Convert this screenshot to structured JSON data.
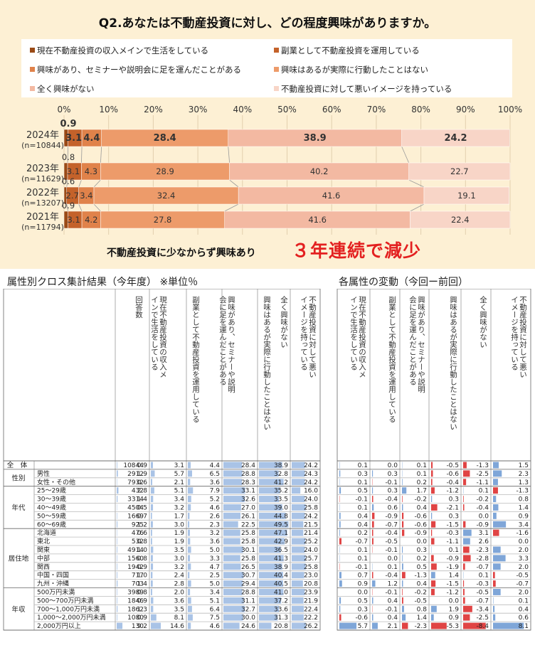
{
  "title": "Q2.あなたは不動産投資に対し、どの程度興味がありますか。",
  "legend": [
    {
      "label": "現在不動産投資の収入メインで生活をしている",
      "color": "#9a4a16"
    },
    {
      "label": "副業として不動産投資を運用している",
      "color": "#c4622a"
    },
    {
      "label": "興味があり、セミナーや説明会に足を運んだことがある",
      "color": "#e0824a"
    },
    {
      "label": "興味はあるが実際に行動したことはない",
      "color": "#ed9b6a"
    },
    {
      "label": "全く興味がない",
      "color": "#f3b9a2"
    },
    {
      "label": "不動産投資に対して悪いイメージを持っている",
      "color": "#f8d5c7"
    }
  ],
  "chart_data": {
    "type": "bar",
    "orientation": "horizontal-stacked-100",
    "xlim": [
      0,
      100
    ],
    "x_ticks": [
      "0%",
      "10%",
      "20%",
      "30%",
      "40%",
      "50%",
      "60%",
      "70%",
      "80%",
      "90%",
      "100%"
    ],
    "categories": [
      "2024年",
      "2023年",
      "2022年",
      "2021年"
    ],
    "category_sublabels": [
      "(n=10844)",
      "(n=11629)",
      "(n=13207)",
      "(n=11794)"
    ],
    "series": [
      {
        "name": "現在不動産投資の収入メインで生活をしている",
        "values": [
          0.9,
          0.8,
          0.6,
          0.9
        ]
      },
      {
        "name": "副業として不動産投資を運用している",
        "values": [
          3.1,
          3.1,
          2.7,
          3.1
        ]
      },
      {
        "name": "興味があり、セミナーや説明会に足を運んだことがある",
        "values": [
          4.4,
          4.3,
          3.4,
          4.2
        ]
      },
      {
        "name": "興味はあるが実際に行動したことはない",
        "values": [
          28.4,
          28.9,
          32.4,
          27.8
        ]
      },
      {
        "name": "全く興味がない",
        "values": [
          38.9,
          40.2,
          41.6,
          41.6
        ]
      },
      {
        "name": "不動産投資に対して悪いイメージを持っている",
        "values": [
          24.2,
          22.7,
          19.1,
          22.4
        ]
      }
    ],
    "grid": true,
    "legend_position": "top"
  },
  "caption_left": "不動産投資に少なからず興味あり",
  "caption_right": "３年連続で減少",
  "section_left": "属性別クロス集計結果（今年度） ※単位％",
  "section_right": "各属性の変動（今回ー前回）",
  "table_headers": [
    "回答数",
    "現在不動産投資の収入メインで生活をしている",
    "副業として不動産投資を運用している",
    "興味があり、セミナーや説明会に足を運んだことがある",
    "興味はあるが実際に行動したことはない",
    "全く興味がない",
    "不動産投資に対して悪いイメージを持っている"
  ],
  "table_rows": [
    {
      "group": "全　体",
      "label": "",
      "n": "10844",
      "v": [
        "0.9",
        "3.1",
        "4.4",
        "28.4",
        "38.9",
        "24.2"
      ],
      "d": [
        "0.1",
        "0.0",
        "0.1",
        "-0.5",
        "-1.3",
        "1.5"
      ]
    },
    {
      "group": "性別",
      "label": "男性",
      "n": "2912",
      "v": [
        "1.9",
        "5.7",
        "6.5",
        "28.8",
        "32.8",
        "24.3"
      ],
      "d": [
        "0.3",
        "0.3",
        "0.1",
        "-0.6",
        "-2.5",
        "2.3"
      ]
    },
    {
      "group": "",
      "label": "女性・その他",
      "n": "7932",
      "v": [
        "0.6",
        "2.1",
        "3.6",
        "28.3",
        "41.2",
        "24.2"
      ],
      "d": [
        "0.1",
        "-0.1",
        "0.2",
        "-0.4",
        "-1.1",
        "1.3"
      ]
    },
    {
      "group": "年代",
      "label": "25～29歳",
      "n": "432",
      "v": [
        "2.8",
        "5.1",
        "7.9",
        "33.1",
        "35.2",
        "16.0"
      ],
      "d": [
        "0.5",
        "0.3",
        "1.7",
        "-1.2",
        "0.1",
        "-1.3"
      ]
    },
    {
      "group": "",
      "label": "30～39歳",
      "n": "3314",
      "v": [
        "1.4",
        "3.4",
        "5.2",
        "32.6",
        "33.5",
        "24.0"
      ],
      "d": [
        "-0.1",
        "-0.4",
        "-0.2",
        "0.3",
        "-0.2",
        "0.8"
      ]
    },
    {
      "group": "",
      "label": "40～49歳",
      "n": "4504",
      "v": [
        "0.5",
        "3.2",
        "4.6",
        "27.0",
        "39.0",
        "25.8"
      ],
      "d": [
        "0.1",
        "0.6",
        "0.4",
        "-2.1",
        "-0.4",
        "1.4"
      ]
    },
    {
      "group": "",
      "label": "50～59歳",
      "n": "1669",
      "v": [
        "0.7",
        "1.7",
        "2.6",
        "26.1",
        "44.8",
        "24.2"
      ],
      "d": [
        "0.4",
        "-0.9",
        "-0.6",
        "0.3",
        "0.0",
        "0.9"
      ]
    },
    {
      "group": "",
      "label": "60～69歳",
      "n": "925",
      "v": [
        "1.2",
        "3.0",
        "2.3",
        "22.5",
        "49.5",
        "21.5"
      ],
      "d": [
        "0.4",
        "-0.7",
        "-0.6",
        "-1.5",
        "-0.9",
        "3.4"
      ]
    },
    {
      "group": "居住地",
      "label": "北海道",
      "n": "476",
      "v": [
        "0.6",
        "1.9",
        "3.2",
        "25.8",
        "47.1",
        "21.4"
      ],
      "d": [
        "0.2",
        "-0.4",
        "-0.9",
        "-0.3",
        "3.1",
        "-1.6"
      ]
    },
    {
      "group": "",
      "label": "東北",
      "n": "532",
      "v": [
        "0.8",
        "1.9",
        "3.6",
        "25.8",
        "42.9",
        "25.2"
      ],
      "d": [
        "-0.7",
        "-0.5",
        "0.0",
        "-1.1",
        "2.6",
        "0.0"
      ]
    },
    {
      "group": "",
      "label": "関東",
      "n": "4914",
      "v": [
        "1.0",
        "3.5",
        "5.0",
        "30.1",
        "36.5",
        "24.0"
      ],
      "d": [
        "0.1",
        "-0.1",
        "0.3",
        "0.1",
        "-2.3",
        "2.0"
      ]
    },
    {
      "group": "",
      "label": "中部",
      "n": "1560",
      "v": [
        "0.8",
        "3.0",
        "3.3",
        "25.8",
        "41.3",
        "25.7"
      ],
      "d": [
        "0.1",
        "0.0",
        "0.2",
        "-0.9",
        "-2.8",
        "3.3"
      ]
    },
    {
      "group": "",
      "label": "関西",
      "n": "1942",
      "v": [
        "0.9",
        "3.2",
        "4.7",
        "26.5",
        "38.9",
        "25.8"
      ],
      "d": [
        "-0.1",
        "0.1",
        "0.5",
        "-1.9",
        "-0.7",
        "2.0"
      ]
    },
    {
      "group": "",
      "label": "中国・四国",
      "n": "717",
      "v": [
        "1.0",
        "2.4",
        "2.5",
        "30.7",
        "40.4",
        "23.0"
      ],
      "d": [
        "0.7",
        "-0.4",
        "-1.3",
        "1.4",
        "0.1",
        "-0.5"
      ]
    },
    {
      "group": "",
      "label": "九州・沖縄",
      "n": "703",
      "v": [
        "1.4",
        "2.8",
        "5.0",
        "29.4",
        "40.5",
        "20.8"
      ],
      "d": [
        "0.9",
        "1.2",
        "0.4",
        "-1.5",
        "-0.3",
        "-0.7"
      ]
    },
    {
      "group": "年収",
      "label": "500万円未満",
      "n": "3989",
      "v": [
        "0.8",
        "2.0",
        "3.4",
        "28.8",
        "41.0",
        "23.9"
      ],
      "d": [
        "0.0",
        "-0.1",
        "-0.2",
        "-1.2",
        "-0.5",
        "2.0"
      ]
    },
    {
      "group": "",
      "label": "500～700万円未満",
      "n": "1846",
      "v": [
        "0.9",
        "3.6",
        "5.1",
        "31.1",
        "37.2",
        "21.9"
      ],
      "d": [
        "0.5",
        "0.4",
        "-0.5",
        "0.0",
        "-0.7",
        "0.1"
      ]
    },
    {
      "group": "",
      "label": "700～1,000万円未満",
      "n": "1862",
      "v": [
        "1.3",
        "3.5",
        "6.4",
        "32.7",
        "33.6",
        "22.4"
      ],
      "d": [
        "0.3",
        "-0.1",
        "0.8",
        "1.9",
        "-3.4",
        "0.4"
      ]
    },
    {
      "group": "",
      "label": "1,000～2,000万円未満",
      "n": "1080",
      "v": [
        "0.9",
        "8.1",
        "7.5",
        "30.0",
        "31.3",
        "22.2"
      ],
      "d": [
        "-0.6",
        "0.4",
        "1.4",
        "0.9",
        "-2.5",
        "0.6"
      ]
    },
    {
      "group": "",
      "label": "2,000万円以上",
      "n": "130",
      "v": [
        "9.2",
        "14.6",
        "4.6",
        "24.6",
        "20.8",
        "26.2"
      ],
      "d": [
        "5.7",
        "2.1",
        "-2.3",
        "-5.3",
        "-8.4",
        "8.1"
      ]
    }
  ]
}
